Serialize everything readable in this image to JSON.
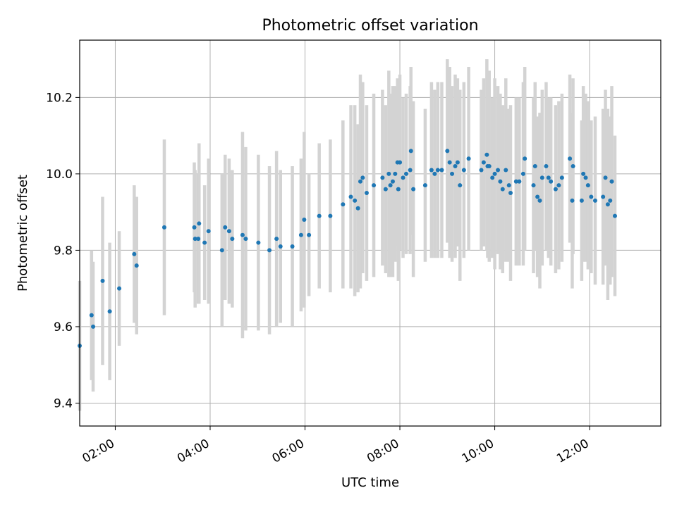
{
  "chart_data": {
    "type": "scatter",
    "title": "Photometric offset variation",
    "xlabel": "UTC time",
    "ylabel": "Photometric offset",
    "xlim": [
      "01:15",
      "13:30"
    ],
    "ylim": [
      9.34,
      10.35
    ],
    "grid": true,
    "legend": "none",
    "xticks": [
      "02:00",
      "04:00",
      "06:00",
      "08:00",
      "10:00",
      "12:00"
    ],
    "yticks": [
      "9.4",
      "9.6",
      "9.8",
      "10.0",
      "10.2"
    ],
    "colors": {
      "points": "#1f77b4",
      "errorbars": "#d3d3d3",
      "grid": "#b0b0b0"
    },
    "series": [
      {
        "x": [
          "01:15",
          "01:30",
          "01:32",
          "01:44",
          "01:53",
          "02:05",
          "02:24",
          "02:27",
          "03:02",
          "03:40",
          "03:41",
          "03:45",
          "03:46",
          "03:53",
          "03:58",
          "04:15",
          "04:19",
          "04:24",
          "04:28",
          "04:41",
          "04:45",
          "05:01",
          "05:15",
          "05:24",
          "05:29",
          "05:44",
          "05:55",
          "05:59",
          "06:05",
          "06:18",
          "06:32",
          "06:48",
          "06:58",
          "07:03",
          "07:07",
          "07:10",
          "07:13",
          "07:18",
          "07:27",
          "07:38",
          "07:42",
          "07:46",
          "07:48",
          "07:51",
          "07:54",
          "07:57",
          "07:58",
          "08:00",
          "08:04",
          "08:08",
          "08:13",
          "08:14",
          "08:17",
          "08:32",
          "08:40",
          "08:44",
          "08:48",
          "08:53",
          "09:00",
          "09:03",
          "09:06",
          "09:10",
          "09:13",
          "09:16",
          "09:21",
          "09:27",
          "09:43",
          "09:46",
          "09:50",
          "09:51",
          "09:53",
          "09:57",
          "10:00",
          "10:04",
          "10:07",
          "10:10",
          "10:14",
          "10:18",
          "10:20",
          "10:27",
          "10:31",
          "10:36",
          "10:38",
          "10:49",
          "10:51",
          "10:54",
          "10:57",
          "11:00",
          "11:05",
          "11:08",
          "11:11",
          "11:17",
          "11:21",
          "11:25",
          "11:35",
          "11:38",
          "11:39",
          "11:50",
          "11:52",
          "11:55",
          "11:58",
          "12:02",
          "12:07",
          "12:17",
          "12:20",
          "12:23",
          "12:26",
          "12:28",
          "12:32"
        ],
        "y": [
          9.55,
          9.63,
          9.6,
          9.72,
          9.64,
          9.7,
          9.79,
          9.76,
          9.86,
          9.86,
          9.83,
          9.83,
          9.87,
          9.82,
          9.85,
          9.8,
          9.86,
          9.85,
          9.83,
          9.84,
          9.83,
          9.82,
          9.8,
          9.83,
          9.81,
          9.81,
          9.84,
          9.88,
          9.84,
          9.89,
          9.89,
          9.92,
          9.94,
          9.93,
          9.91,
          9.98,
          9.99,
          9.95,
          9.97,
          9.99,
          9.96,
          10.0,
          9.97,
          9.98,
          10.0,
          10.03,
          9.96,
          10.03,
          9.99,
          10.0,
          10.01,
          10.06,
          9.96,
          9.97,
          10.01,
          10.0,
          10.01,
          10.01,
          10.06,
          10.03,
          10.0,
          10.02,
          10.03,
          9.97,
          10.01,
          10.04,
          10.01,
          10.03,
          10.05,
          10.02,
          10.02,
          9.99,
          10.0,
          10.01,
          9.98,
          9.96,
          10.01,
          9.97,
          9.95,
          9.98,
          9.98,
          10.0,
          10.04,
          9.97,
          10.02,
          9.94,
          9.93,
          9.99,
          10.02,
          9.99,
          9.98,
          9.96,
          9.97,
          9.99,
          10.04,
          9.93,
          10.02,
          9.93,
          10.0,
          9.99,
          9.97,
          9.94,
          9.93,
          9.94,
          9.99,
          9.92,
          9.93,
          9.98,
          9.89
        ],
        "yerr": [
          0.17,
          0.17,
          0.17,
          0.22,
          0.18,
          0.15,
          0.18,
          0.18,
          0.23,
          0.17,
          0.18,
          0.17,
          0.21,
          0.15,
          0.19,
          0.2,
          0.19,
          0.19,
          0.18,
          0.27,
          0.24,
          0.23,
          0.22,
          0.23,
          0.2,
          0.21,
          0.2,
          0.23,
          0.16,
          0.19,
          0.2,
          0.22,
          0.24,
          0.25,
          0.22,
          0.28,
          0.25,
          0.23,
          0.24,
          0.23,
          0.22,
          0.27,
          0.24,
          0.25,
          0.23,
          0.22,
          0.24,
          0.23,
          0.21,
          0.21,
          0.22,
          0.22,
          0.23,
          0.2,
          0.23,
          0.22,
          0.23,
          0.23,
          0.24,
          0.25,
          0.23,
          0.24,
          0.22,
          0.25,
          0.23,
          0.24,
          0.21,
          0.22,
          0.25,
          0.24,
          0.25,
          0.21,
          0.25,
          0.22,
          0.23,
          0.22,
          0.24,
          0.2,
          0.23,
          0.22,
          0.22,
          0.24,
          0.24,
          0.23,
          0.22,
          0.21,
          0.23,
          0.23,
          0.22,
          0.21,
          0.22,
          0.22,
          0.22,
          0.22,
          0.22,
          0.23,
          0.23,
          0.21,
          0.23,
          0.22,
          0.22,
          0.2,
          0.22,
          0.23,
          0.23,
          0.25,
          0.22,
          0.25,
          0.21
        ]
      }
    ]
  }
}
